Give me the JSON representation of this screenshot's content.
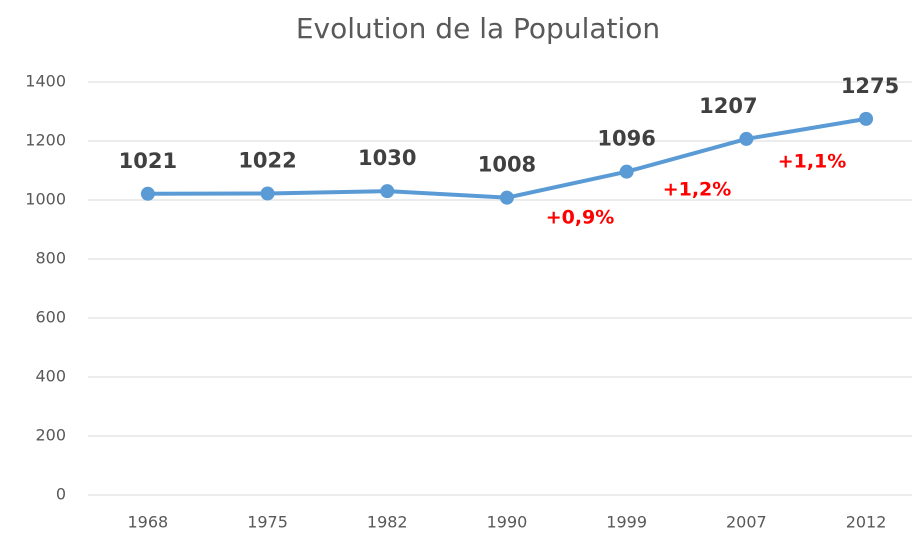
{
  "chart_data": {
    "type": "line",
    "title": "Evolution de la Population",
    "categories": [
      "1968",
      "1975",
      "1982",
      "1990",
      "1999",
      "2007",
      "2012"
    ],
    "values": [
      1021,
      1022,
      1030,
      1008,
      1096,
      1207,
      1275
    ],
    "color": "#5b9bd5",
    "ylim": [
      0,
      1400
    ],
    "yticks": [
      0,
      200,
      400,
      600,
      800,
      1000,
      1200,
      1400
    ],
    "grid": true,
    "annotations": [
      "+0,9%",
      "+1,2%",
      "+1,1%"
    ]
  }
}
